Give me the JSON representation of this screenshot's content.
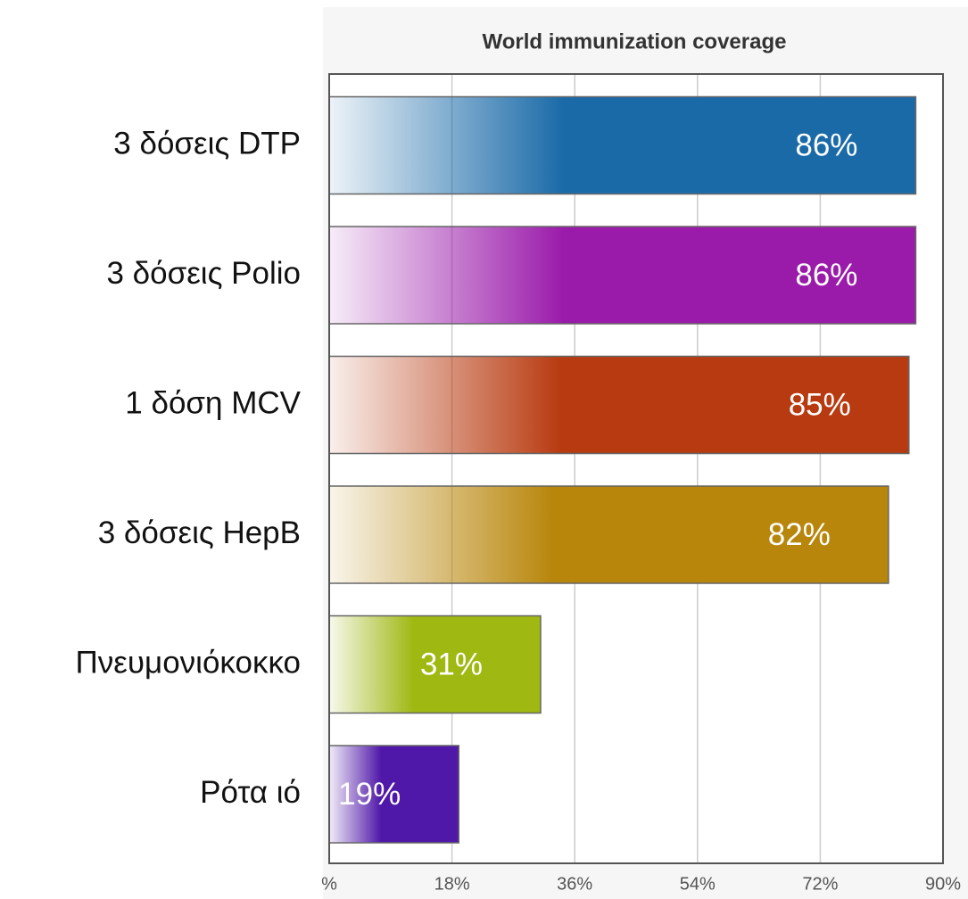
{
  "chart_data": {
    "type": "bar",
    "orientation": "horizontal",
    "title": "World immunization coverage",
    "categories": [
      "3 δόσεις DTP",
      "3 δόσεις Polio",
      "1 δόση MCV",
      "3 δόσεις HepB",
      "Πνευμονιόκοκκο",
      "Ρότα ιό"
    ],
    "values": [
      86,
      86,
      85,
      82,
      31,
      19
    ],
    "value_labels": [
      "86%",
      "86%",
      "85%",
      "82%",
      "31%",
      "19%"
    ],
    "colors": [
      "#1a6aa8",
      "#9a1aaa",
      "#b83a10",
      "#b8860b",
      "#a0b812",
      "#5018a8"
    ],
    "xlim": [
      0,
      90
    ],
    "xticks": [
      {
        "value": 0,
        "label": "%"
      },
      {
        "value": 18,
        "label": "18%"
      },
      {
        "value": 36,
        "label": "36%"
      },
      {
        "value": 54,
        "label": "54%"
      },
      {
        "value": 72,
        "label": "72%"
      },
      {
        "value": 90,
        "label": "90%"
      }
    ],
    "grid": true
  }
}
